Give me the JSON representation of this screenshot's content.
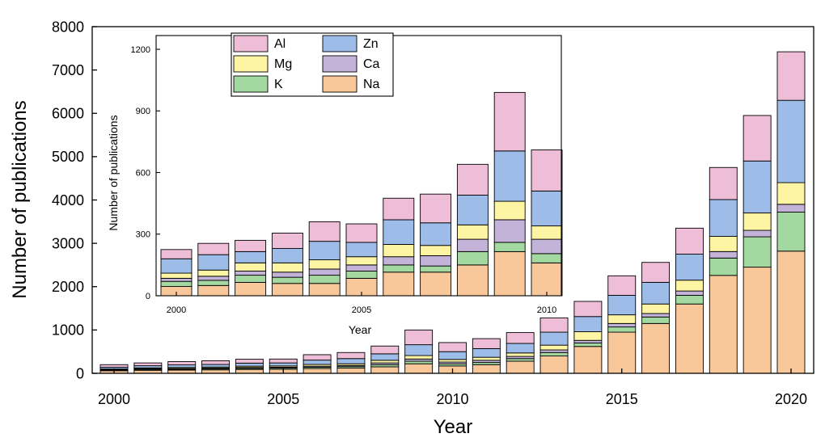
{
  "chart_data": [
    {
      "type": "bar",
      "stacked": true,
      "xlabel": "Year",
      "ylabel": "Number of publications",
      "ylim": [
        0,
        8000
      ],
      "yticks": [
        0,
        1000,
        2000,
        3000,
        4000,
        5000,
        6000,
        7000,
        8000
      ],
      "xticks": [
        2000,
        2005,
        2010,
        2015,
        2020
      ],
      "categories": [
        2000,
        2001,
        2002,
        2003,
        2004,
        2005,
        2006,
        2007,
        2008,
        2009,
        2010,
        2011,
        2012,
        2013,
        2014,
        2015,
        2016,
        2017,
        2018,
        2019,
        2020
      ],
      "series": [
        {
          "name": "Na",
          "color": "#f9c89a",
          "values": [
            60,
            70,
            75,
            80,
            90,
            95,
            110,
            120,
            150,
            220,
            170,
            200,
            280,
            400,
            620,
            950,
            1150,
            1600,
            2260,
            2450,
            2820
          ]
        },
        {
          "name": "K",
          "color": "#a3d9a0",
          "values": [
            15,
            20,
            20,
            22,
            25,
            25,
            30,
            35,
            50,
            60,
            50,
            50,
            60,
            80,
            80,
            120,
            150,
            200,
            400,
            700,
            900
          ]
        },
        {
          "name": "Ca",
          "color": "#c3b3d9",
          "values": [
            10,
            15,
            15,
            18,
            20,
            20,
            25,
            25,
            40,
            50,
            40,
            50,
            50,
            60,
            60,
            80,
            80,
            100,
            150,
            150,
            180
          ]
        },
        {
          "name": "Mg",
          "color": "#fdf4a4",
          "values": [
            15,
            20,
            25,
            25,
            30,
            30,
            40,
            40,
            60,
            80,
            60,
            70,
            80,
            110,
            200,
            200,
            220,
            250,
            350,
            400,
            500
          ]
        },
        {
          "name": "Zn",
          "color": "#9dbde8",
          "values": [
            40,
            50,
            60,
            60,
            70,
            70,
            100,
            120,
            150,
            250,
            180,
            200,
            220,
            300,
            350,
            450,
            500,
            600,
            850,
            1200,
            1900
          ]
        },
        {
          "name": "Al",
          "color": "#eebed8",
          "values": [
            60,
            65,
            75,
            85,
            90,
            90,
            125,
            140,
            180,
            340,
            210,
            230,
            250,
            330,
            350,
            450,
            460,
            600,
            740,
            1050,
            1120
          ]
        }
      ]
    },
    {
      "type": "bar",
      "stacked": true,
      "inset": true,
      "xlabel": "Year",
      "ylabel": "Number of publications",
      "ylim": [
        0,
        1200
      ],
      "yticks": [
        0,
        300,
        600,
        900,
        1200
      ],
      "xticks": [
        2000,
        2005,
        2010
      ],
      "categories": [
        2000,
        2001,
        2002,
        2003,
        2004,
        2005,
        2006,
        2007,
        2008,
        2009,
        2010
      ],
      "series": [
        {
          "name": "Na",
          "color": "#f9c89a",
          "values": [
            45,
            50,
            65,
            60,
            60,
            85,
            115,
            115,
            150,
            215,
            160
          ]
        },
        {
          "name": "K",
          "color": "#a3d9a0",
          "values": [
            25,
            25,
            35,
            30,
            40,
            35,
            35,
            30,
            65,
            45,
            45
          ]
        },
        {
          "name": "Ca",
          "color": "#c3b3d9",
          "values": [
            15,
            20,
            20,
            25,
            30,
            30,
            40,
            50,
            60,
            110,
            70
          ]
        },
        {
          "name": "Mg",
          "color": "#fdf4a4",
          "values": [
            25,
            30,
            40,
            45,
            45,
            40,
            60,
            50,
            70,
            90,
            65
          ]
        },
        {
          "name": "Zn",
          "color": "#9dbde8",
          "values": [
            70,
            75,
            55,
            70,
            90,
            70,
            120,
            110,
            145,
            245,
            170
          ]
        },
        {
          "name": "Al",
          "color": "#eebed8",
          "values": [
            45,
            55,
            55,
            75,
            95,
            90,
            105,
            140,
            150,
            285,
            200
          ]
        }
      ],
      "legend": {
        "position": "top-left",
        "entries": [
          {
            "name": "Al",
            "color": "#eebed8"
          },
          {
            "name": "Zn",
            "color": "#9dbde8"
          },
          {
            "name": "Mg",
            "color": "#fdf4a4"
          },
          {
            "name": "Ca",
            "color": "#c3b3d9"
          },
          {
            "name": "K",
            "color": "#a3d9a0"
          },
          {
            "name": "Na",
            "color": "#f9c89a"
          }
        ]
      }
    }
  ]
}
